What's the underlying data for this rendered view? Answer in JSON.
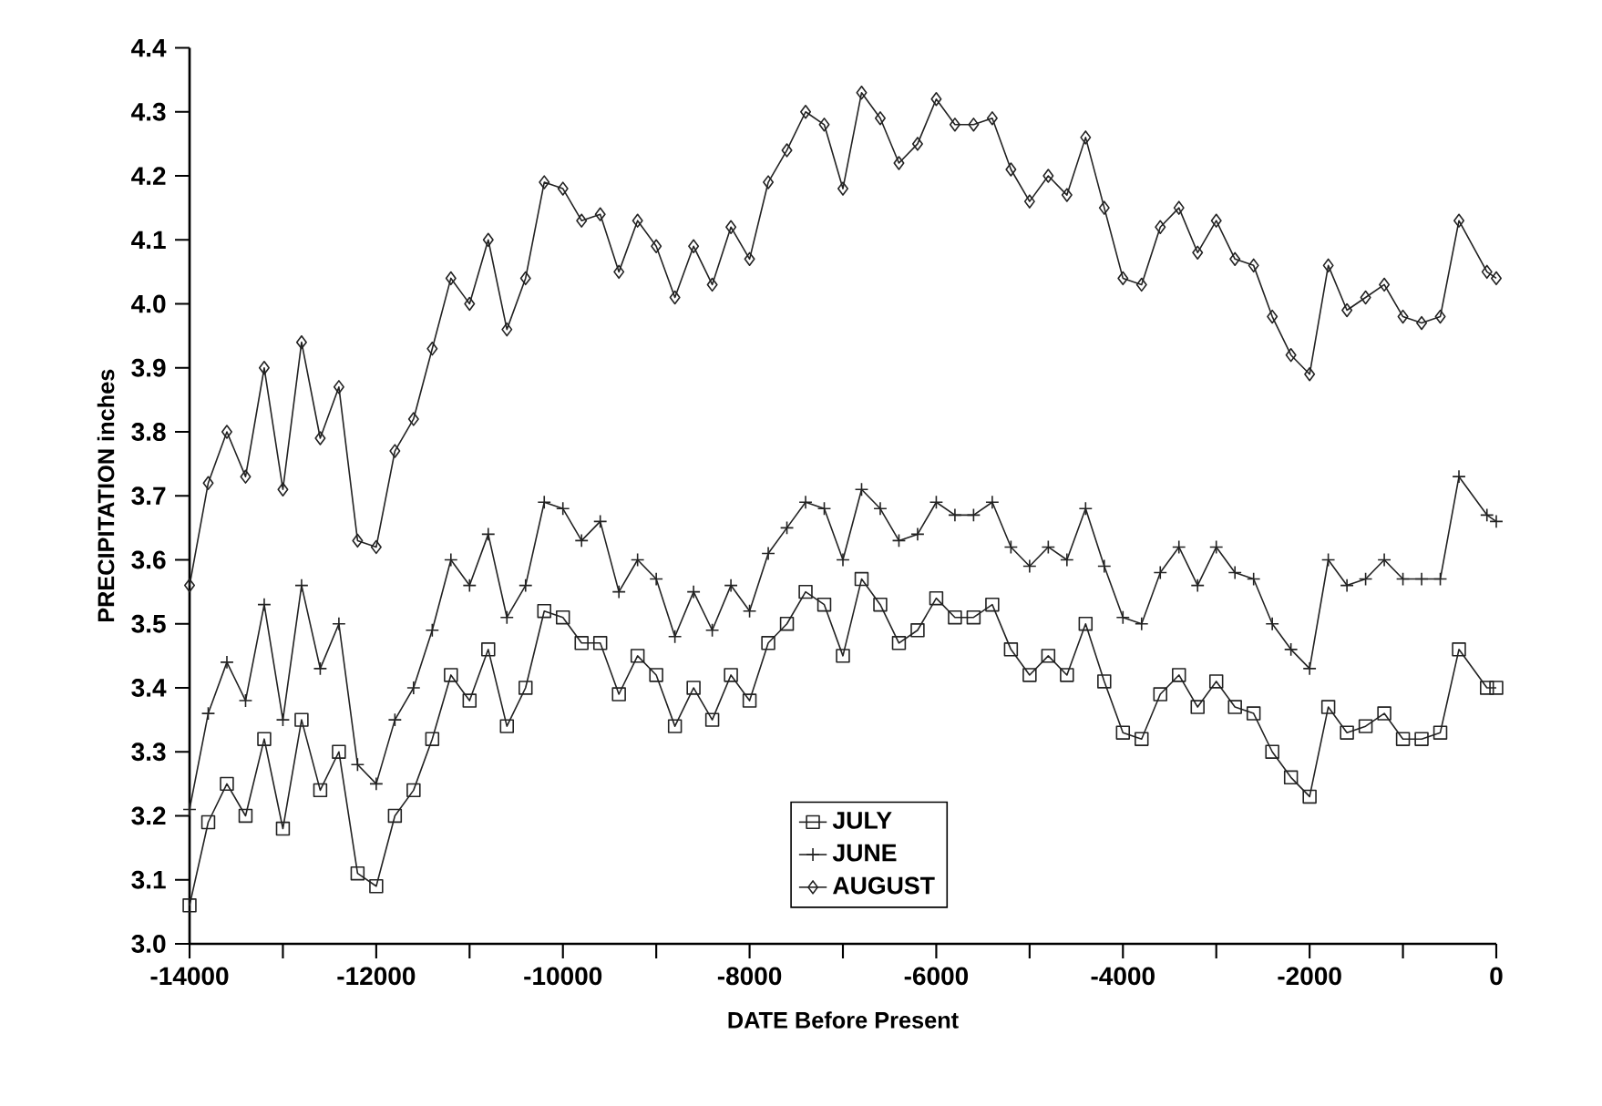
{
  "chart_data": {
    "type": "line",
    "xlabel": "DATE Before Present",
    "ylabel": "PRECIPITATION inches",
    "x": [
      -14000,
      -13800,
      -13600,
      -13400,
      -13200,
      -13000,
      -12800,
      -12600,
      -12400,
      -12200,
      -12000,
      -11800,
      -11600,
      -11400,
      -11200,
      -11000,
      -10800,
      -10600,
      -10400,
      -10200,
      -10000,
      -9800,
      -9600,
      -9400,
      -9200,
      -9000,
      -8800,
      -8600,
      -8400,
      -8200,
      -8000,
      -7800,
      -7600,
      -7400,
      -7200,
      -7000,
      -6800,
      -6600,
      -6400,
      -6200,
      -6000,
      -5800,
      -5600,
      -5400,
      -5200,
      -5000,
      -4800,
      -4600,
      -4400,
      -4200,
      -4000,
      -3800,
      -3600,
      -3400,
      -3200,
      -3000,
      -2800,
      -2600,
      -2400,
      -2200,
      -2000,
      -1800,
      -1600,
      -1400,
      -1200,
      -1000,
      -800,
      -600,
      -400,
      -100,
      0
    ],
    "series": [
      {
        "name": "JULY",
        "color": "#222222",
        "marker": "square",
        "values": [
          3.06,
          3.19,
          3.25,
          3.2,
          3.32,
          3.18,
          3.35,
          3.24,
          3.3,
          3.11,
          3.09,
          3.2,
          3.24,
          3.32,
          3.42,
          3.38,
          3.46,
          3.34,
          3.4,
          3.52,
          3.51,
          3.47,
          3.47,
          3.39,
          3.45,
          3.42,
          3.34,
          3.4,
          3.35,
          3.42,
          3.38,
          3.47,
          3.5,
          3.55,
          3.53,
          3.45,
          3.57,
          3.53,
          3.47,
          3.49,
          3.54,
          3.51,
          3.51,
          3.53,
          3.46,
          3.42,
          3.45,
          3.42,
          3.5,
          3.41,
          3.33,
          3.32,
          3.39,
          3.42,
          3.37,
          3.41,
          3.37,
          3.36,
          3.3,
          3.26,
          3.23,
          3.37,
          3.33,
          3.34,
          3.36,
          3.32,
          3.32,
          3.33,
          3.46,
          3.4,
          3.4
        ]
      },
      {
        "name": "JUNE",
        "color": "#222222",
        "marker": "cross",
        "values": [
          3.21,
          3.36,
          3.44,
          3.38,
          3.53,
          3.35,
          3.56,
          3.43,
          3.5,
          3.28,
          3.25,
          3.35,
          3.4,
          3.49,
          3.6,
          3.56,
          3.64,
          3.51,
          3.56,
          3.69,
          3.68,
          3.63,
          3.66,
          3.55,
          3.6,
          3.57,
          3.48,
          3.55,
          3.49,
          3.56,
          3.52,
          3.61,
          3.65,
          3.69,
          3.68,
          3.6,
          3.71,
          3.68,
          3.63,
          3.64,
          3.69,
          3.67,
          3.67,
          3.69,
          3.62,
          3.59,
          3.62,
          3.6,
          3.68,
          3.59,
          3.51,
          3.5,
          3.58,
          3.62,
          3.56,
          3.62,
          3.58,
          3.57,
          3.5,
          3.46,
          3.43,
          3.6,
          3.56,
          3.57,
          3.6,
          3.57,
          3.57,
          3.57,
          3.73,
          3.67,
          3.66
        ]
      },
      {
        "name": "AUGUST",
        "color": "#222222",
        "marker": "diamond",
        "values": [
          3.56,
          3.72,
          3.8,
          3.73,
          3.9,
          3.71,
          3.94,
          3.79,
          3.87,
          3.63,
          3.62,
          3.77,
          3.82,
          3.93,
          4.04,
          4.0,
          4.1,
          3.96,
          4.04,
          4.19,
          4.18,
          4.13,
          4.14,
          4.05,
          4.13,
          4.09,
          4.01,
          4.09,
          4.03,
          4.12,
          4.07,
          4.19,
          4.24,
          4.3,
          4.28,
          4.18,
          4.33,
          4.29,
          4.22,
          4.25,
          4.32,
          4.28,
          4.28,
          4.29,
          4.21,
          4.16,
          4.2,
          4.17,
          4.26,
          4.15,
          4.04,
          4.03,
          4.12,
          4.15,
          4.08,
          4.13,
          4.07,
          4.06,
          3.98,
          3.92,
          3.89,
          4.06,
          3.99,
          4.01,
          4.03,
          3.98,
          3.97,
          3.98,
          4.13,
          4.05,
          4.04
        ]
      }
    ],
    "xlim": [
      -14000,
      0
    ],
    "xticks": [
      -14000,
      {
        "value": -13000,
        "label": null
      },
      -12000,
      {
        "value": -11000,
        "label": null
      },
      -10000,
      {
        "value": -9000,
        "label": null
      },
      -8000,
      {
        "value": -7000,
        "label": null
      },
      -6000,
      {
        "value": -5000,
        "label": null
      },
      -4000,
      {
        "value": -3000,
        "label": null
      },
      -2000,
      {
        "value": -1000,
        "label": null
      },
      0
    ],
    "ylim": [
      3.0,
      4.4
    ],
    "yticks": [
      {
        "value": 3.0,
        "label": "3.0"
      },
      3.1,
      3.2,
      3.3,
      3.4,
      3.5,
      3.6,
      3.7,
      3.8,
      3.9,
      {
        "value": 4.0,
        "label": "4.0"
      },
      4.1,
      4.2,
      4.3,
      4.4
    ],
    "legend": "bottom",
    "grid": false,
    "line_style": "solid"
  }
}
